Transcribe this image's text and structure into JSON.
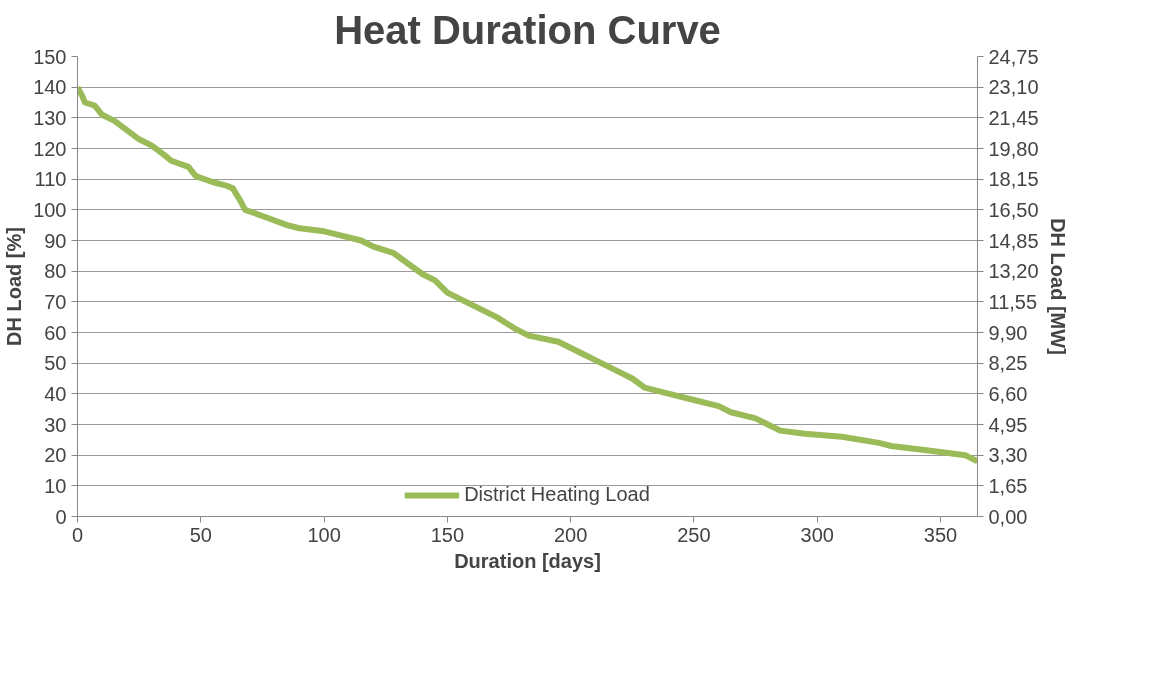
{
  "chart_data": {
    "type": "line",
    "title": "Heat Duration Curve",
    "xlabel": "Duration [days]",
    "ylabel": "DH Load [%]",
    "y2label": "DH Load [MW]",
    "x": [
      0,
      2,
      3,
      7,
      10,
      15,
      20,
      25,
      30,
      35,
      38,
      45,
      48,
      55,
      60,
      63,
      66,
      68,
      75,
      85,
      90,
      100,
      105,
      115,
      120,
      128,
      140,
      145,
      150,
      160,
      170,
      178,
      183,
      195,
      205,
      210,
      220,
      225,
      230,
      240,
      250,
      260,
      265,
      275,
      280,
      285,
      295,
      310,
      325,
      330,
      340,
      350,
      360,
      365
    ],
    "series": [
      {
        "name": "District Heating Load",
        "color": "#9bbb59",
        "values": [
          140,
          137,
          135,
          134,
          131,
          129,
          126,
          123,
          121,
          118,
          116,
          114,
          111,
          109,
          108,
          107,
          103,
          100,
          98,
          95,
          94,
          93,
          92,
          90,
          88,
          86,
          79,
          77,
          73,
          69,
          65,
          61,
          59,
          57,
          53,
          51,
          47,
          45,
          42,
          40,
          38,
          36,
          34,
          32,
          30,
          28,
          27,
          26,
          24,
          23,
          22,
          21,
          20,
          18
        ]
      }
    ],
    "xlim": [
      0,
      365
    ],
    "xticks": [
      0,
      50,
      100,
      150,
      200,
      250,
      300,
      350
    ],
    "ylim": [
      0,
      150
    ],
    "yticks": [
      0,
      10,
      20,
      30,
      40,
      50,
      60,
      70,
      80,
      90,
      100,
      110,
      120,
      130,
      140,
      150
    ],
    "y2lim": [
      0,
      24.75
    ],
    "y2ticks": [
      {
        "value": 0,
        "label": "0,00"
      },
      {
        "value": 1.65,
        "label": "1,65"
      },
      {
        "value": 3.3,
        "label": "3,30"
      },
      {
        "value": 4.95,
        "label": "4,95"
      },
      {
        "value": 6.6,
        "label": "6,60"
      },
      {
        "value": 8.25,
        "label": "8,25"
      },
      {
        "value": 9.9,
        "label": "9,90"
      },
      {
        "value": 11.55,
        "label": "11,55"
      },
      {
        "value": 13.2,
        "label": "13,20"
      },
      {
        "value": 14.85,
        "label": "14,85"
      },
      {
        "value": 16.5,
        "label": "16,50"
      },
      {
        "value": 18.15,
        "label": "18,15"
      },
      {
        "value": 19.8,
        "label": "19,80"
      },
      {
        "value": 21.45,
        "label": "21,45"
      },
      {
        "value": 23.1,
        "label": "23,10"
      },
      {
        "value": 24.75,
        "label": "24,75"
      }
    ],
    "grid": "y",
    "legend": "bottom",
    "marker": "none",
    "line_style": "solid"
  }
}
